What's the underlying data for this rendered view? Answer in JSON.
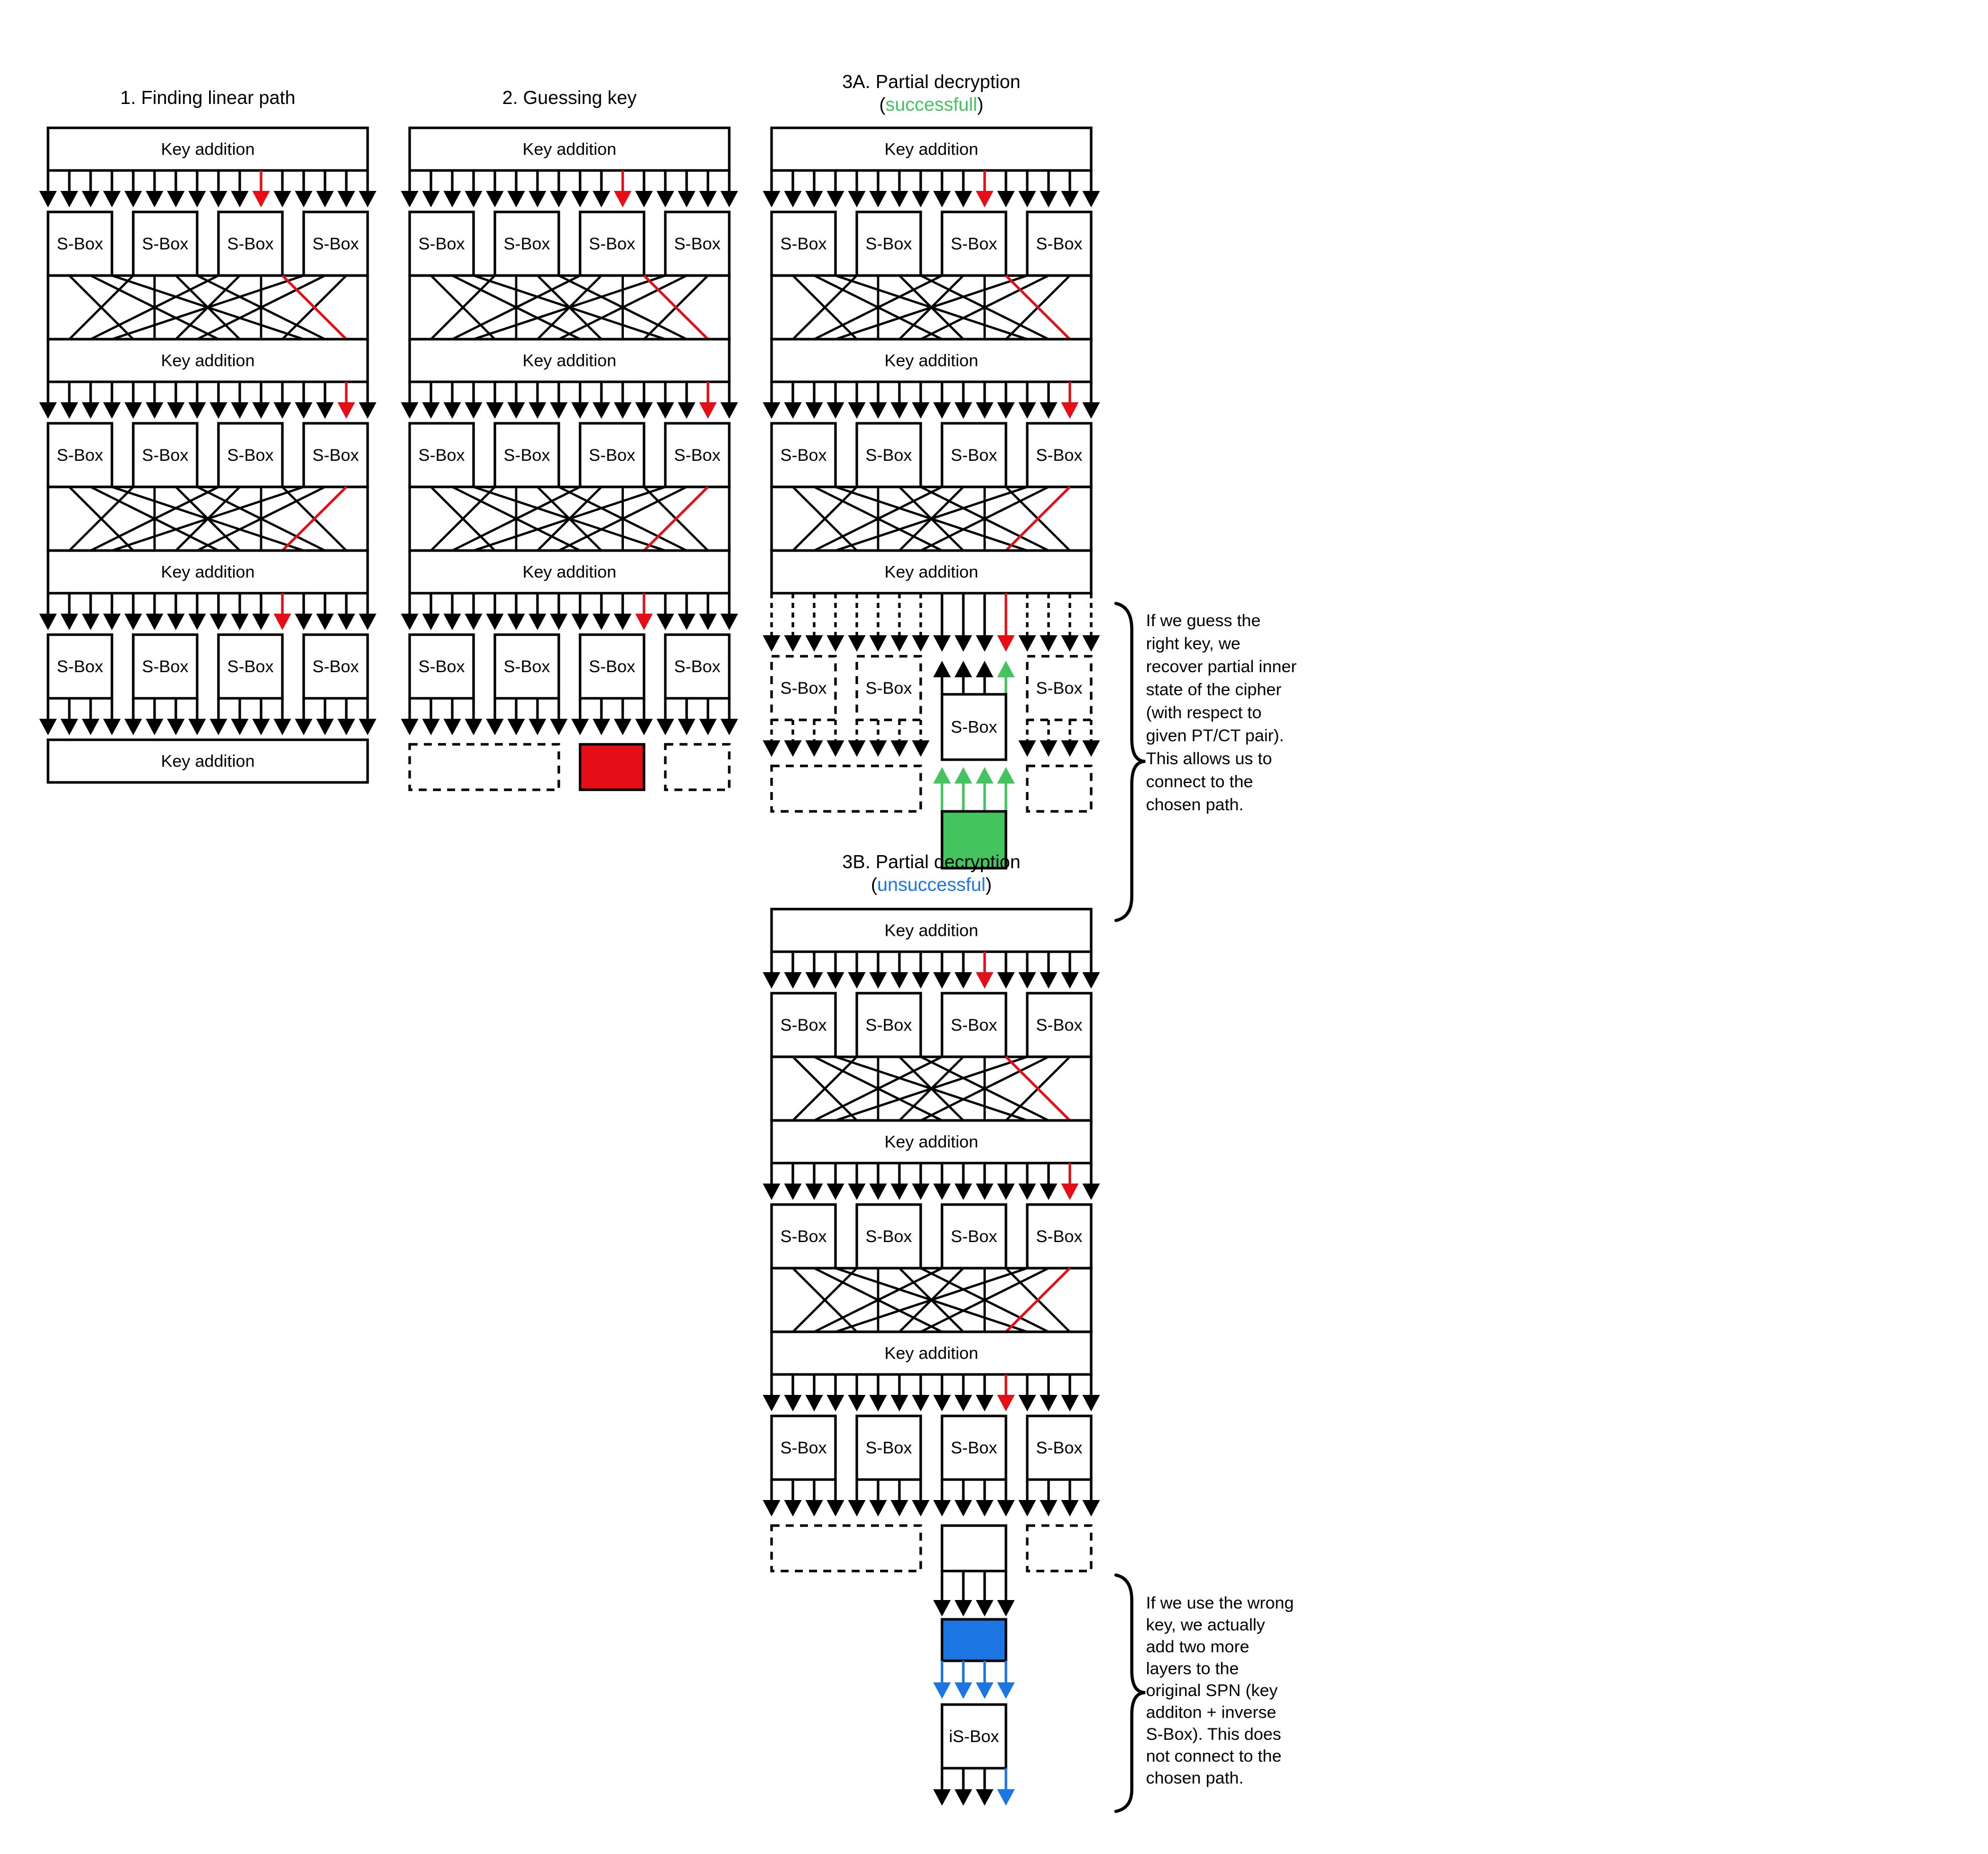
{
  "labels": {
    "key_addition": "Key addition",
    "sbox": "S-Box",
    "inverse_sbox": "iS-Box"
  },
  "colors": {
    "black": "#000000",
    "red": "#e60e16",
    "green": "#43c45f",
    "blue": "#1b76e3",
    "background": "#ffffff"
  },
  "panels": {
    "p1": {
      "title": "1. Finding linear path"
    },
    "p2": {
      "title": "2. Guessing key"
    },
    "p3a": {
      "title_line1": "3A. Partial decryption",
      "title2_open": "(",
      "title2_word": "successfull",
      "title2_close": ")"
    },
    "p3b": {
      "title_line1": "3B. Partial decryption",
      "title2_open": "(",
      "title2_word": "unsuccessful",
      "title2_close": ")"
    }
  },
  "annotations": {
    "success": {
      "lines": [
        "If we guess the",
        "right key, we",
        "recover partial inner",
        "state of the cipher",
        "(with respect to",
        "given PT/CT pair).",
        "This allows us to",
        "connect to the",
        "chosen path."
      ]
    },
    "fail": {
      "lines": [
        "If we use the wrong",
        "key, we actually",
        "add two more",
        "layers to the",
        "original SPN (key",
        "additon + inverse",
        "S-Box). This does",
        "not connect to the",
        "chosen path."
      ]
    }
  },
  "diagram": {
    "columns": 16,
    "sboxes_per_row": 4,
    "rounds": 3,
    "red_arrow_columns": [
      11,
      15,
      12
    ],
    "red_perm_routes": [
      [
        12,
        15
      ],
      [
        15,
        12
      ]
    ],
    "permutation": [
      1,
      5,
      9,
      13,
      2,
      6,
      10,
      14,
      3,
      7,
      11,
      15,
      4,
      8,
      12,
      16
    ]
  }
}
